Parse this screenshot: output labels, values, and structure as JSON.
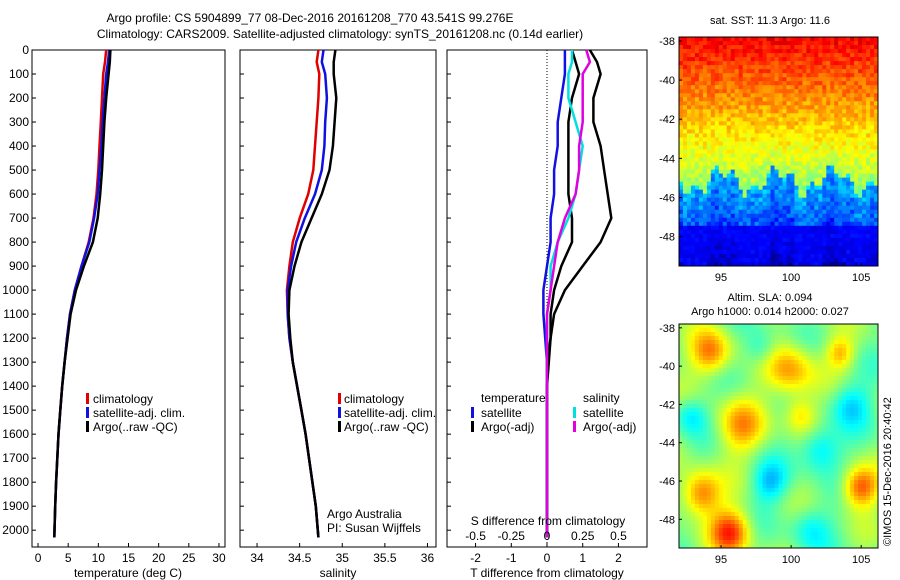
{
  "header": {
    "title_line1": "Argo profile: CS 5904899_77 08-Dec-2016 20161208_770 43.541S 99.276E",
    "title_line2": "Climatology: CARS2009. Satellite-adjusted climatology: synTS_20161208.nc (0.14d earlier)"
  },
  "colors": {
    "climatology": "#e00000",
    "satellite": "#1010e0",
    "argo": "#000000",
    "sat_s": "#00e0e0",
    "argo_s": "#e000e0"
  },
  "chart_data": [
    {
      "type": "line",
      "id": "temperature",
      "xlabel": "temperature (deg C)",
      "ylabel": "",
      "xlim": [
        -1,
        31
      ],
      "ylim": [
        2070,
        0
      ],
      "xticks": [
        0,
        5,
        10,
        15,
        20,
        25,
        30
      ],
      "yticks": [
        0,
        100,
        200,
        300,
        400,
        500,
        600,
        700,
        800,
        900,
        1000,
        1100,
        1200,
        1300,
        1400,
        1500,
        1600,
        1700,
        1800,
        1900,
        2000
      ],
      "legend": [
        "climatology",
        "satellite-adj. clim.",
        "Argo(..raw -QC)"
      ],
      "series": [
        {
          "name": "climatology",
          "color": "#e00000",
          "x": [
            11.3,
            11.1,
            10.8,
            10.6,
            10.4,
            10.2,
            10.0,
            9.7,
            9.2,
            8.4,
            7.2,
            6.1,
            5.3,
            4.8,
            4.4,
            4.0,
            3.7,
            3.4,
            3.2,
            3.0,
            2.85,
            2.7
          ],
          "y": [
            0,
            50,
            100,
            200,
            300,
            400,
            500,
            600,
            700,
            800,
            900,
            1000,
            1100,
            1200,
            1300,
            1400,
            1500,
            1600,
            1700,
            1800,
            1900,
            2030
          ]
        },
        {
          "name": "satellite-adj. clim.",
          "color": "#1010e0",
          "x": [
            11.8,
            11.6,
            11.3,
            11.0,
            10.7,
            10.5,
            10.2,
            9.9,
            9.3,
            8.5,
            7.2,
            6.1,
            5.3,
            4.8,
            4.4,
            4.0,
            3.7,
            3.4,
            3.2,
            3.0,
            2.85,
            2.7
          ],
          "y": [
            0,
            50,
            100,
            200,
            300,
            400,
            500,
            600,
            700,
            800,
            900,
            1000,
            1100,
            1200,
            1300,
            1400,
            1500,
            1600,
            1700,
            1800,
            1900,
            2030
          ]
        },
        {
          "name": "Argo(..raw -QC)",
          "color": "#000000",
          "x": [
            12.0,
            11.9,
            11.7,
            11.3,
            11.0,
            10.8,
            10.6,
            10.3,
            9.9,
            9.1,
            7.6,
            6.3,
            5.4,
            4.9,
            4.4,
            4.0,
            3.7,
            3.4,
            3.2,
            3.0,
            2.85,
            2.7
          ],
          "y": [
            0,
            50,
            100,
            200,
            300,
            400,
            500,
            600,
            700,
            800,
            900,
            1000,
            1100,
            1200,
            1300,
            1400,
            1500,
            1600,
            1700,
            1800,
            1900,
            2030
          ]
        }
      ]
    },
    {
      "type": "line",
      "id": "salinity",
      "xlabel": "salinity",
      "xlim": [
        33.8,
        36.1
      ],
      "ylim": [
        2070,
        0
      ],
      "xticks": [
        34,
        34.5,
        35,
        35.5,
        36
      ],
      "legend": [
        "climatology",
        "satellite-adj. clim.",
        "Argo(..raw -QC)"
      ],
      "annotation": [
        "Argo Australia",
        "PI: Susan Wijffels"
      ],
      "series": [
        {
          "name": "climatology",
          "color": "#e00000",
          "x": [
            34.72,
            34.7,
            34.73,
            34.72,
            34.7,
            34.68,
            34.66,
            34.6,
            34.5,
            34.42,
            34.38,
            34.35,
            34.36,
            34.38,
            34.42,
            34.47,
            34.52,
            34.57,
            34.61,
            34.65,
            34.69,
            34.72
          ],
          "y": [
            0,
            50,
            100,
            200,
            300,
            400,
            500,
            600,
            700,
            800,
            900,
            1000,
            1100,
            1200,
            1300,
            1400,
            1500,
            1600,
            1700,
            1800,
            1900,
            2030
          ]
        },
        {
          "name": "satellite-adj. clim.",
          "color": "#1010e0",
          "x": [
            34.78,
            34.76,
            34.8,
            34.82,
            34.8,
            34.79,
            34.76,
            34.68,
            34.56,
            34.46,
            34.4,
            34.36,
            34.36,
            34.38,
            34.42,
            34.47,
            34.52,
            34.57,
            34.61,
            34.65,
            34.69,
            34.72
          ],
          "y": [
            0,
            50,
            100,
            200,
            300,
            400,
            500,
            600,
            700,
            800,
            900,
            1000,
            1100,
            1200,
            1300,
            1400,
            1500,
            1600,
            1700,
            1800,
            1900,
            2030
          ]
        },
        {
          "name": "Argo(..raw -QC)",
          "color": "#000000",
          "x": [
            34.92,
            34.9,
            34.9,
            34.93,
            34.91,
            34.89,
            34.85,
            34.76,
            34.64,
            34.52,
            34.44,
            34.38,
            34.37,
            34.39,
            34.42,
            34.47,
            34.52,
            34.57,
            34.61,
            34.65,
            34.69,
            34.72
          ],
          "y": [
            0,
            50,
            100,
            200,
            300,
            400,
            500,
            600,
            700,
            800,
            900,
            1000,
            1100,
            1200,
            1300,
            1400,
            1500,
            1600,
            1700,
            1800,
            1900,
            2030
          ]
        }
      ]
    },
    {
      "type": "line",
      "id": "difference",
      "xlabel": "T difference from climatology",
      "xlim": [
        -2.8,
        2.8
      ],
      "ylim": [
        2070,
        0
      ],
      "xticks": [
        -2,
        -1,
        0,
        1,
        2
      ],
      "top_label": "S difference from climatology",
      "top_ticks": [
        "-0.5",
        "-0.25",
        "0",
        "0.25",
        "0.5"
      ],
      "top_tick_x": [
        -2,
        -1,
        0,
        1,
        2
      ],
      "legend_t_title": "temperature",
      "legend_s_title": "salinity",
      "legend_t": [
        "satellite",
        "Argo(-adj)"
      ],
      "legend_s": [
        "satellite",
        "Argo(-adj)"
      ],
      "series": [
        {
          "name": "satellite",
          "color": "#1010e0",
          "x": [
            0.5,
            0.5,
            0.5,
            0.4,
            0.3,
            0.3,
            0.2,
            0.2,
            0.1,
            0.1,
            0.0,
            -0.1,
            -0.1,
            -0.05,
            0.0,
            0.0,
            0.0,
            0.0,
            0.0,
            0.0,
            0.0,
            0.0
          ],
          "y": [
            0,
            50,
            100,
            200,
            300,
            400,
            500,
            600,
            700,
            800,
            900,
            1000,
            1100,
            1200,
            1300,
            1400,
            1500,
            1600,
            1700,
            1800,
            1900,
            2030
          ]
        },
        {
          "name": "Argo(-adj)",
          "color": "#000000",
          "x": [
            0.7,
            0.8,
            0.9,
            0.7,
            0.6,
            0.6,
            0.6,
            0.6,
            0.7,
            0.7,
            0.4,
            0.2,
            0.1,
            0.1,
            0.0,
            0.0,
            0.0,
            0.0,
            0.0,
            0.0,
            0.0,
            0.0
          ],
          "y": [
            0,
            50,
            100,
            200,
            300,
            400,
            500,
            600,
            700,
            800,
            900,
            1000,
            1100,
            1200,
            1300,
            1400,
            1500,
            1600,
            1700,
            1800,
            1900,
            2030
          ]
        },
        {
          "name": "satellite",
          "color": "#00e0e0",
          "x": [
            0.7,
            0.7,
            0.6,
            0.6,
            0.8,
            1.0,
            0.9,
            0.8,
            0.6,
            0.3,
            0.1,
            0.1,
            0.0,
            0.0,
            0.0,
            0.0,
            0.0,
            0.0,
            0.0,
            0.0,
            0.0,
            0.0
          ],
          "y": [
            0,
            50,
            100,
            200,
            300,
            400,
            500,
            600,
            700,
            800,
            900,
            1000,
            1100,
            1200,
            1300,
            1400,
            1500,
            1600,
            1700,
            1800,
            1900,
            2030
          ]
        },
        {
          "name": "Argo(-adj)",
          "color": "#000000",
          "x": [
            1.2,
            1.4,
            1.5,
            1.3,
            1.3,
            1.5,
            1.6,
            1.7,
            1.8,
            1.5,
            1.0,
            0.5,
            0.2,
            0.1,
            0.05,
            0.0,
            0.0,
            0.0,
            0.0,
            0.0,
            0.0,
            0.0
          ],
          "y": [
            0,
            50,
            100,
            200,
            300,
            400,
            500,
            600,
            700,
            800,
            900,
            1000,
            1100,
            1200,
            1300,
            1400,
            1500,
            1600,
            1700,
            1800,
            1900,
            2030
          ]
        },
        {
          "name": "Argo(-adj)",
          "color": "#e000e0",
          "x": [
            1.1,
            1.2,
            1.0,
            1.0,
            1.0,
            0.9,
            0.9,
            0.8,
            0.5,
            0.3,
            0.2,
            0.1,
            0.0,
            0.0,
            0.0,
            0.0,
            0.0,
            0.0,
            0.0,
            0.0,
            0.0,
            0.0
          ],
          "y": [
            0,
            50,
            100,
            200,
            300,
            400,
            500,
            600,
            700,
            800,
            900,
            1000,
            1100,
            1200,
            1300,
            1400,
            1500,
            1600,
            1700,
            1800,
            1900,
            2030
          ]
        }
      ]
    },
    {
      "type": "heatmap",
      "id": "sst_map",
      "title": "sat. SST: 11.3 Argo: 11.6",
      "xlim": [
        92,
        106.2
      ],
      "ylim": [
        -49.5,
        -37.8
      ],
      "xticks": [
        95,
        100,
        105
      ],
      "yticks": [
        -38,
        -40,
        -42,
        -44,
        -46,
        -48
      ]
    },
    {
      "type": "heatmap",
      "id": "sla_map",
      "title_line1": "Altim. SLA: 0.094",
      "title_line2": "Argo h1000: 0.014 h2000: 0.027",
      "xlim": [
        92,
        106.2
      ],
      "ylim": [
        -49.5,
        -37.8
      ],
      "xticks": [
        95,
        100,
        105
      ],
      "yticks": [
        -38,
        -40,
        -42,
        -44,
        -46,
        -48
      ]
    }
  ],
  "footer": {
    "credit": "©IMOS 15-Dec-2016 20:40:42"
  }
}
